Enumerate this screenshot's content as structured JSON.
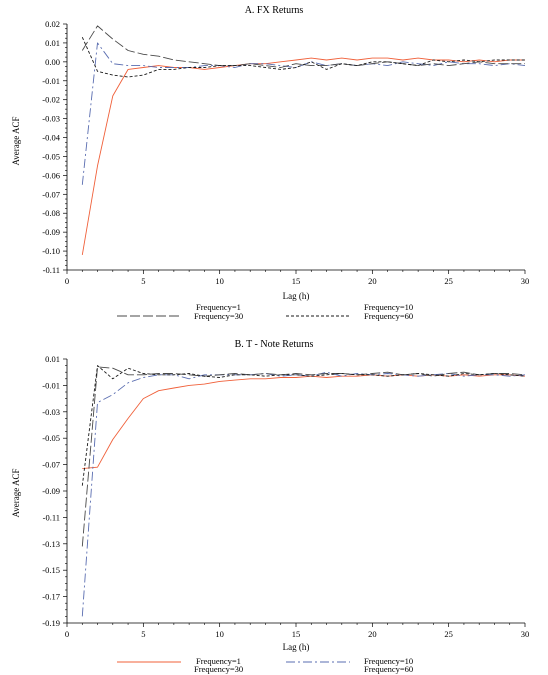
{
  "colors": {
    "freq1": "#f0603a",
    "freq10": "#5a6db0",
    "freq30": "#4a4a4a",
    "freq60": "#1a1a1a",
    "axis": "#000000"
  },
  "chart_data": [
    {
      "type": "line",
      "title": "A. FX Returns",
      "xlabel": "Lag (h)",
      "ylabel": "Average ACF",
      "xlim": [
        0,
        30
      ],
      "ylim": [
        -0.11,
        0.02
      ],
      "xticks": [
        "0",
        "5",
        "10",
        "15",
        "20",
        "25",
        "30"
      ],
      "xtick_values": [
        0,
        5,
        10,
        15,
        20,
        25,
        30
      ],
      "yticks": [
        "0.02",
        "0.01",
        "0.00",
        "-0.01",
        "-0.02",
        "-0.03",
        "-0.04",
        "-0.05",
        "-0.06",
        "-0.07",
        "-0.08",
        "-0.09",
        "-0.10",
        "-0.11"
      ],
      "ytick_values": [
        0.02,
        0.01,
        0.0,
        -0.01,
        -0.02,
        -0.03,
        -0.04,
        -0.05,
        -0.06,
        -0.07,
        -0.08,
        -0.09,
        -0.1,
        -0.11
      ],
      "grid": false,
      "legend": "bottom",
      "x": [
        1,
        2,
        3,
        4,
        5,
        6,
        7,
        8,
        9,
        10,
        11,
        12,
        13,
        14,
        15,
        16,
        17,
        18,
        19,
        20,
        21,
        22,
        23,
        24,
        25,
        26,
        27,
        28,
        29,
        30
      ],
      "series": [
        {
          "name": "Frequency=1",
          "color_key": "freq1",
          "dash": "",
          "values": [
            -0.102,
            -0.055,
            -0.018,
            -0.004,
            -0.003,
            -0.002,
            -0.003,
            -0.003,
            -0.004,
            -0.003,
            -0.002,
            -0.001,
            -0.001,
            0.0,
            0.001,
            0.002,
            0.001,
            0.002,
            0.001,
            0.002,
            0.002,
            0.001,
            0.002,
            0.001,
            0.001,
            0.0,
            0.001,
            0.0,
            0.001,
            0.001
          ]
        },
        {
          "name": "Frequency=10",
          "color_key": "freq10",
          "dash": "9 3 2 3",
          "values": [
            -0.065,
            0.01,
            -0.001,
            -0.002,
            -0.002,
            -0.003,
            -0.003,
            -0.003,
            -0.002,
            -0.002,
            -0.003,
            -0.001,
            -0.001,
            -0.002,
            -0.003,
            0.0,
            -0.002,
            -0.001,
            -0.002,
            -0.001,
            -0.002,
            0.0,
            -0.001,
            -0.002,
            0.0,
            -0.001,
            -0.001,
            -0.002,
            -0.001,
            -0.002
          ]
        },
        {
          "name": "Frequency=30",
          "color_key": "freq30",
          "dash": "10 3",
          "values": [
            0.006,
            0.019,
            0.012,
            0.006,
            0.004,
            0.003,
            0.001,
            0.0,
            -0.001,
            -0.002,
            -0.002,
            -0.001,
            -0.002,
            -0.003,
            -0.001,
            -0.002,
            -0.002,
            -0.001,
            -0.002,
            -0.001,
            0.0,
            -0.001,
            -0.002,
            -0.001,
            -0.002,
            -0.001,
            0.0,
            -0.001,
            -0.001,
            -0.001
          ]
        },
        {
          "name": "Frequency=60",
          "color_key": "freq60",
          "dash": "3 2",
          "values": [
            0.013,
            -0.005,
            -0.007,
            -0.008,
            -0.007,
            -0.004,
            -0.004,
            -0.003,
            -0.003,
            -0.002,
            -0.002,
            -0.002,
            -0.003,
            -0.004,
            -0.003,
            0.0,
            -0.004,
            -0.001,
            -0.002,
            0.0,
            0.0,
            -0.001,
            -0.002,
            0.001,
            0.0,
            0.001,
            0.0,
            0.001,
            0.001,
            0.001
          ]
        }
      ]
    },
    {
      "type": "line",
      "title": "B. T - Note Returns",
      "xlabel": "Lag (h)",
      "ylabel": "Average ACF",
      "xlim": [
        0,
        30
      ],
      "ylim": [
        -0.19,
        0.01
      ],
      "xticks": [
        "0",
        "5",
        "10",
        "15",
        "20",
        "25",
        "30"
      ],
      "xtick_values": [
        0,
        5,
        10,
        15,
        20,
        25,
        30
      ],
      "yticks": [
        "0.01",
        "-0.01",
        "-0.03",
        "-0.05",
        "-0.07",
        "-0.09",
        "-0.11",
        "-0.13",
        "-0.15",
        "-0.17",
        "-0.19"
      ],
      "ytick_values": [
        0.01,
        -0.01,
        -0.03,
        -0.05,
        -0.07,
        -0.09,
        -0.11,
        -0.13,
        -0.15,
        -0.17,
        -0.19
      ],
      "grid": false,
      "legend": "bottom",
      "x": [
        1,
        2,
        3,
        4,
        5,
        6,
        7,
        8,
        9,
        10,
        11,
        12,
        13,
        14,
        15,
        16,
        17,
        18,
        19,
        20,
        21,
        22,
        23,
        24,
        25,
        26,
        27,
        28,
        29,
        30
      ],
      "series": [
        {
          "name": "Frequency=1",
          "color_key": "freq1",
          "dash": "",
          "values": [
            -0.073,
            -0.072,
            -0.051,
            -0.035,
            -0.02,
            -0.014,
            -0.012,
            -0.01,
            -0.009,
            -0.007,
            -0.006,
            -0.005,
            -0.005,
            -0.004,
            -0.004,
            -0.003,
            -0.004,
            -0.003,
            -0.003,
            -0.002,
            -0.003,
            -0.002,
            -0.003,
            -0.002,
            -0.003,
            -0.002,
            -0.003,
            -0.002,
            -0.002,
            -0.003
          ]
        },
        {
          "name": "Frequency=10",
          "color_key": "freq10",
          "dash": "9 3 2 3",
          "values": [
            -0.185,
            -0.023,
            -0.017,
            -0.008,
            -0.004,
            -0.002,
            -0.002,
            -0.005,
            -0.002,
            -0.002,
            -0.002,
            -0.002,
            -0.001,
            -0.003,
            -0.002,
            -0.003,
            0.0,
            -0.003,
            -0.001,
            -0.002,
            -0.001,
            -0.002,
            -0.003,
            -0.002,
            -0.001,
            -0.003,
            -0.002,
            -0.002,
            -0.003,
            -0.002
          ]
        },
        {
          "name": "Frequency=30",
          "color_key": "freq30",
          "dash": "10 3",
          "values": [
            -0.132,
            0.004,
            0.003,
            -0.002,
            -0.002,
            -0.001,
            -0.001,
            -0.002,
            -0.003,
            -0.002,
            -0.001,
            -0.002,
            -0.001,
            -0.002,
            -0.001,
            -0.002,
            -0.001,
            -0.001,
            -0.002,
            -0.001,
            0.0,
            -0.002,
            -0.001,
            -0.003,
            -0.001,
            0.0,
            -0.002,
            -0.001,
            -0.001,
            -0.002
          ]
        },
        {
          "name": "Frequency=60",
          "color_key": "freq60",
          "dash": "3 2",
          "values": [
            -0.086,
            0.005,
            -0.005,
            0.003,
            -0.001,
            -0.002,
            -0.002,
            -0.001,
            -0.003,
            -0.004,
            -0.002,
            -0.002,
            -0.003,
            -0.002,
            -0.002,
            -0.003,
            -0.002,
            -0.001,
            -0.002,
            -0.002,
            -0.003,
            -0.002,
            -0.001,
            -0.002,
            -0.003,
            -0.001,
            -0.002,
            -0.001,
            -0.002,
            -0.003
          ]
        }
      ]
    }
  ]
}
